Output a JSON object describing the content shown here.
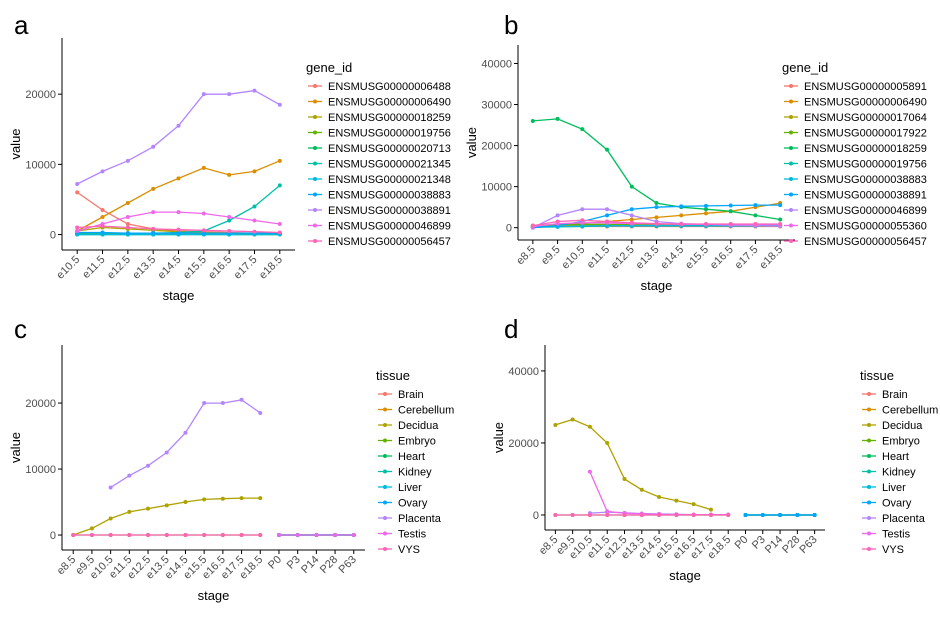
{
  "chart_data": [
    {
      "type": "line",
      "panel": "a",
      "x_label": "stage",
      "y_label": "value",
      "legend_title": "gene_id",
      "categories": [
        "e10.5",
        "e11.5",
        "e12.5",
        "e13.5",
        "e14.5",
        "e15.5",
        "e16.5",
        "e17.5",
        "e18.5"
      ],
      "ylim": [
        -2200,
        28000
      ],
      "yticks": [
        0,
        10000,
        20000
      ],
      "series": [
        {
          "name": "ENSMUSG00000006488",
          "color": "#F8766D",
          "values": [
            6000,
            3500,
            1500,
            800,
            500,
            400,
            300,
            200,
            100
          ]
        },
        {
          "name": "ENSMUSG00000006490",
          "color": "#DB8E00",
          "values": [
            500,
            2500,
            4500,
            6500,
            8000,
            9500,
            8500,
            9000,
            10500
          ]
        },
        {
          "name": "ENSMUSG00000018259",
          "color": "#AEA200",
          "values": [
            500,
            1000,
            800,
            600,
            400,
            300,
            200,
            200,
            200
          ]
        },
        {
          "name": "ENSMUSG00000019756",
          "color": "#64B200",
          "values": [
            100,
            100,
            100,
            100,
            100,
            100,
            100,
            100,
            100
          ]
        },
        {
          "name": "ENSMUSG00000020713",
          "color": "#00BD5C",
          "values": [
            0,
            0,
            0,
            0,
            0,
            0,
            0,
            0,
            0
          ]
        },
        {
          "name": "ENSMUSG00000021345",
          "color": "#00C1A7",
          "values": [
            200,
            200,
            200,
            200,
            300,
            500,
            2000,
            4000,
            7000
          ]
        },
        {
          "name": "ENSMUSG00000021348",
          "color": "#00BADE",
          "values": [
            0,
            0,
            0,
            0,
            0,
            0,
            0,
            0,
            0
          ]
        },
        {
          "name": "ENSMUSG00000038883",
          "color": "#00A6FF",
          "values": [
            300,
            300,
            200,
            200,
            200,
            200,
            200,
            200,
            200
          ]
        },
        {
          "name": "ENSMUSG00000038891",
          "color": "#B385FF",
          "values": [
            7200,
            9000,
            10500,
            12500,
            15500,
            20000,
            20000,
            20500,
            18500
          ]
        },
        {
          "name": "ENSMUSG00000046899",
          "color": "#EF67EB",
          "values": [
            500,
            1500,
            2500,
            3200,
            3200,
            3000,
            2500,
            2000,
            1500
          ]
        },
        {
          "name": "ENSMUSG00000056457",
          "color": "#FF63B6",
          "values": [
            1000,
            1200,
            1000,
            800,
            700,
            600,
            500,
            400,
            300
          ]
        }
      ]
    },
    {
      "type": "line",
      "panel": "b",
      "x_label": "stage",
      "y_label": "value",
      "legend_title": "gene_id",
      "categories": [
        "e8.5",
        "e9.5",
        "e10.5",
        "e11.5",
        "e12.5",
        "e13.5",
        "e14.5",
        "e15.5",
        "e16.5",
        "e17.5",
        "e18.5"
      ],
      "ylim": [
        -3000,
        44500
      ],
      "yticks": [
        0,
        10000,
        20000,
        30000,
        40000
      ],
      "series": [
        {
          "name": "ENSMUSG00000005891",
          "color": "#F8766D",
          "values": [
            200,
            300,
            300,
            300,
            300,
            300,
            300,
            300,
            300,
            300,
            300
          ]
        },
        {
          "name": "ENSMUSG00000006490",
          "color": "#DB8E00",
          "values": [
            0,
            500,
            1000,
            1500,
            2000,
            2500,
            3000,
            3500,
            4000,
            5000,
            6000
          ]
        },
        {
          "name": "ENSMUSG00000017064",
          "color": "#AEA200",
          "values": [
            300,
            500,
            600,
            600,
            600,
            600,
            600,
            600,
            600,
            600,
            600
          ]
        },
        {
          "name": "ENSMUSG00000017922",
          "color": "#64B200",
          "values": [
            500,
            800,
            800,
            800,
            800,
            800,
            800,
            800,
            800,
            800,
            800
          ]
        },
        {
          "name": "ENSMUSG00000018259",
          "color": "#00BD5C",
          "values": [
            26000,
            26500,
            24000,
            19000,
            10000,
            6000,
            5000,
            4500,
            4000,
            3000,
            2000
          ]
        },
        {
          "name": "ENSMUSG00000019756",
          "color": "#00C1A7",
          "values": [
            100,
            200,
            300,
            400,
            400,
            400,
            400,
            400,
            400,
            400,
            400
          ]
        },
        {
          "name": "ENSMUSG00000038883",
          "color": "#00BADE",
          "values": [
            200,
            300,
            400,
            500,
            500,
            500,
            500,
            500,
            500,
            500,
            500
          ]
        },
        {
          "name": "ENSMUSG00000038891",
          "color": "#00A6FF",
          "values": [
            0,
            500,
            1500,
            3000,
            4500,
            5000,
            5200,
            5300,
            5400,
            5500,
            5500
          ]
        },
        {
          "name": "ENSMUSG00000046899",
          "color": "#B385FF",
          "values": [
            0,
            3000,
            4500,
            4500,
            3000,
            1500,
            1000,
            800,
            600,
            500,
            400
          ]
        },
        {
          "name": "ENSMUSG00000055360",
          "color": "#EF67EB",
          "values": [
            300,
            1000,
            1200,
            1200,
            1000,
            900,
            800,
            800,
            800,
            800,
            800
          ]
        },
        {
          "name": "ENSMUSG00000056457",
          "color": "#FF63B6",
          "values": [
            500,
            1500,
            1800,
            1500,
            1200,
            1000,
            900,
            900,
            900,
            900,
            900
          ]
        }
      ]
    },
    {
      "type": "line",
      "panel": "c",
      "x_label": "stage",
      "y_label": "value",
      "legend_title": "tissue",
      "categories": [
        "e8.5",
        "e9.5",
        "e10.5",
        "e11.5",
        "e12.5",
        "e13.5",
        "e14.5",
        "e15.5",
        "e16.5",
        "e17.5",
        "e18.5",
        "P0",
        "P3",
        "P14",
        "P28",
        "P63"
      ],
      "ylim": [
        -2270,
        28800
      ],
      "yticks": [
        0,
        10000,
        20000
      ],
      "series": [
        {
          "name": "Brain",
          "color": "#F8766D",
          "values": [
            null,
            null,
            null,
            null,
            null,
            null,
            null,
            null,
            null,
            null,
            null,
            0,
            0,
            0,
            0,
            0
          ]
        },
        {
          "name": "Cerebellum",
          "color": "#DB8E00",
          "values": [
            null,
            null,
            null,
            null,
            null,
            null,
            null,
            null,
            null,
            null,
            null,
            0,
            0,
            0,
            0,
            0
          ]
        },
        {
          "name": "Decidua",
          "color": "#AEA200",
          "values": [
            0,
            1000,
            2500,
            3500,
            4000,
            4500,
            5000,
            5400,
            5500,
            5600,
            5600,
            null,
            null,
            null,
            null,
            null
          ]
        },
        {
          "name": "Embryo",
          "color": "#64B200",
          "values": [
            0,
            0,
            0,
            0,
            0,
            0,
            0,
            0,
            0,
            0,
            0,
            null,
            null,
            null,
            null,
            null
          ]
        },
        {
          "name": "Heart",
          "color": "#00BD5C",
          "values": [
            null,
            null,
            null,
            null,
            null,
            null,
            null,
            null,
            null,
            null,
            null,
            0,
            0,
            0,
            0,
            0
          ]
        },
        {
          "name": "Kidney",
          "color": "#00C1A7",
          "values": [
            null,
            null,
            null,
            null,
            null,
            null,
            null,
            null,
            null,
            null,
            null,
            0,
            0,
            0,
            0,
            0
          ]
        },
        {
          "name": "Liver",
          "color": "#00BADE",
          "values": [
            null,
            null,
            null,
            null,
            null,
            null,
            null,
            null,
            null,
            null,
            null,
            0,
            0,
            0,
            0,
            0
          ]
        },
        {
          "name": "Ovary",
          "color": "#00A6FF",
          "values": [
            null,
            null,
            null,
            null,
            null,
            null,
            null,
            null,
            null,
            null,
            null,
            0,
            0,
            0,
            0,
            0
          ]
        },
        {
          "name": "Placenta",
          "color": "#B385FF",
          "values": [
            null,
            null,
            7200,
            9000,
            10500,
            12500,
            15500,
            20000,
            20000,
            20500,
            18500,
            null,
            null,
            null,
            null,
            null
          ]
        },
        {
          "name": "Testis",
          "color": "#EF67EB",
          "values": [
            null,
            null,
            null,
            null,
            null,
            null,
            null,
            null,
            null,
            null,
            null,
            0,
            0,
            0,
            0,
            0
          ]
        },
        {
          "name": "VYS",
          "color": "#FF63B6",
          "values": [
            0,
            0,
            0,
            0,
            0,
            0,
            0,
            0,
            0,
            0,
            0,
            null,
            null,
            null,
            null,
            null
          ]
        }
      ]
    },
    {
      "type": "line",
      "panel": "d",
      "x_label": "stage",
      "y_label": "value",
      "legend_title": "tissue",
      "categories": [
        "e8.5",
        "e9.5",
        "e10.5",
        "e11.5",
        "e12.5",
        "e13.5",
        "e14.5",
        "e15.5",
        "e16.5",
        "e17.5",
        "e18.5",
        "P0",
        "P3",
        "P14",
        "P28",
        "P63"
      ],
      "ylim": [
        -4170,
        47200
      ],
      "yticks": [
        0,
        20000,
        40000
      ],
      "series": [
        {
          "name": "Brain",
          "color": "#F8766D",
          "values": [
            null,
            null,
            null,
            null,
            null,
            null,
            null,
            null,
            null,
            null,
            null,
            0,
            0,
            0,
            0,
            0
          ]
        },
        {
          "name": "Cerebellum",
          "color": "#DB8E00",
          "values": [
            null,
            null,
            null,
            null,
            null,
            null,
            null,
            null,
            null,
            null,
            null,
            0,
            0,
            0,
            0,
            0
          ]
        },
        {
          "name": "Decidua",
          "color": "#AEA200",
          "values": [
            25000,
            26500,
            24500,
            20000,
            10000,
            7000,
            5000,
            4000,
            3000,
            1500,
            null,
            null,
            null,
            null,
            null,
            null
          ]
        },
        {
          "name": "Embryo",
          "color": "#64B200",
          "values": [
            0,
            0,
            0,
            0,
            0,
            0,
            0,
            0,
            0,
            0,
            0,
            null,
            null,
            null,
            null,
            null
          ]
        },
        {
          "name": "Heart",
          "color": "#00BD5C",
          "values": [
            null,
            null,
            null,
            null,
            null,
            null,
            null,
            null,
            null,
            null,
            null,
            0,
            0,
            0,
            0,
            0
          ]
        },
        {
          "name": "Kidney",
          "color": "#00C1A7",
          "values": [
            null,
            null,
            null,
            null,
            null,
            null,
            null,
            null,
            null,
            null,
            null,
            0,
            0,
            0,
            0,
            0
          ]
        },
        {
          "name": "Liver",
          "color": "#00BADE",
          "values": [
            null,
            null,
            null,
            null,
            null,
            null,
            null,
            null,
            null,
            null,
            null,
            0,
            0,
            0,
            0,
            0
          ]
        },
        {
          "name": "Ovary",
          "color": "#00A6FF",
          "values": [
            null,
            null,
            null,
            null,
            null,
            null,
            null,
            null,
            null,
            null,
            null,
            0,
            0,
            0,
            0,
            0
          ]
        },
        {
          "name": "Placenta",
          "color": "#B385FF",
          "values": [
            null,
            null,
            500,
            800,
            600,
            400,
            300,
            200,
            100,
            100,
            100,
            null,
            null,
            null,
            null,
            null
          ]
        },
        {
          "name": "Testis",
          "color": "#EF67EB",
          "values": [
            null,
            null,
            12000,
            1000,
            500,
            300,
            200,
            100,
            100,
            100,
            100,
            null,
            null,
            null,
            null,
            null
          ]
        },
        {
          "name": "VYS",
          "color": "#FF63B6",
          "values": [
            0,
            0,
            0,
            0,
            0,
            0,
            0,
            0,
            0,
            0,
            0,
            null,
            null,
            null,
            null,
            null
          ]
        }
      ]
    }
  ]
}
